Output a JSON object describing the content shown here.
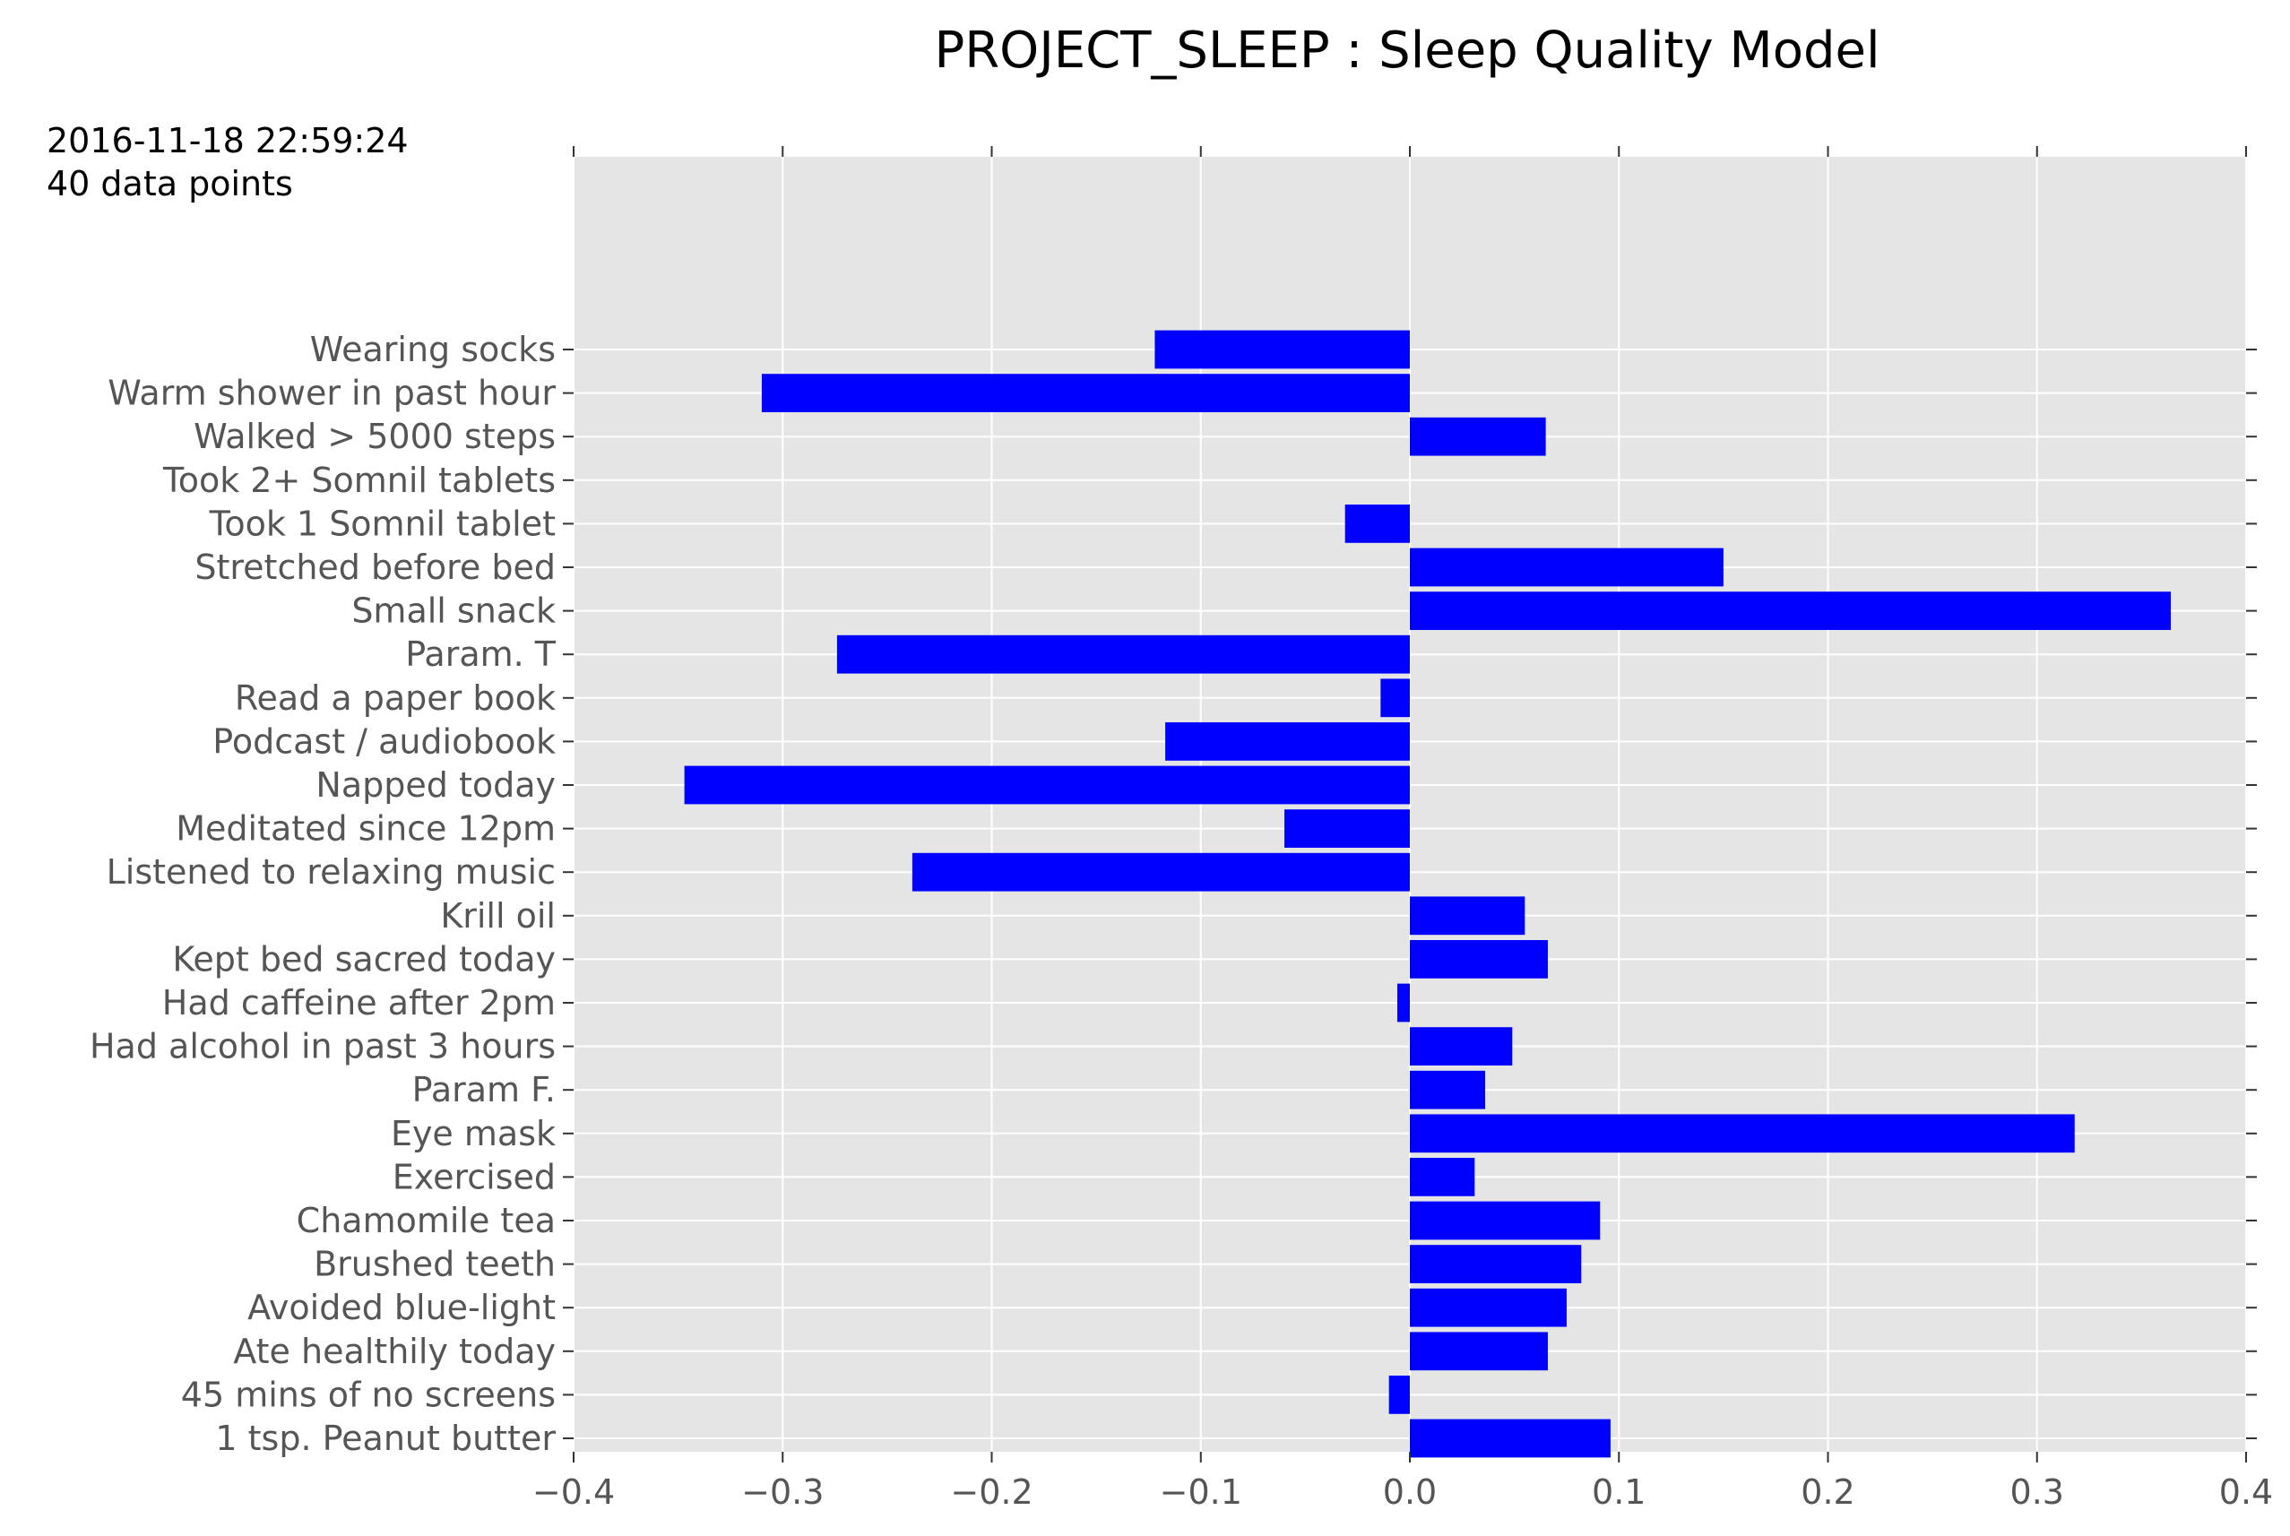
{
  "meta": {
    "timestamp": "2016-11-18 22:59:24",
    "count_text": "40 data points"
  },
  "chart_data": {
    "type": "bar",
    "orientation": "horizontal",
    "title": "PROJECT_SLEEP : Sleep Quality Model",
    "xlabel": "",
    "ylabel": "",
    "xlim": [
      -0.4,
      0.4
    ],
    "xticks": [
      -0.4,
      -0.3,
      -0.2,
      -0.1,
      0.0,
      0.1,
      0.2,
      0.3,
      0.4
    ],
    "xtick_labels": [
      "−0.4",
      "−0.3",
      "−0.2",
      "−0.1",
      "0.0",
      "0.1",
      "0.2",
      "0.3",
      "0.4"
    ],
    "grid": true,
    "bar_color": "#0000ff",
    "background_color": "#e5e5e5",
    "categories": [
      "Wearing socks",
      "Warm shower in past hour",
      "Walked > 5000 steps",
      "Took 2+ Somnil tablets",
      "Took 1 Somnil tablet",
      "Stretched before bed",
      "Small snack",
      "Param. T",
      "Read a paper book",
      "Podcast / audiobook",
      "Napped today",
      "Meditated since 12pm",
      "Listened to relaxing music",
      "Krill oil",
      "Kept bed sacred today",
      "Had caffeine after 2pm",
      "Had alcohol in past 3 hours",
      "Param F.",
      "Eye mask",
      "Exercised",
      "Chamomile tea",
      "Brushed teeth",
      "Avoided blue-light",
      "Ate healthily today",
      "45 mins of no screens",
      "1 tsp. Peanut butter"
    ],
    "values": [
      -0.122,
      -0.31,
      0.065,
      0.0,
      -0.031,
      0.15,
      0.364,
      -0.274,
      -0.014,
      -0.117,
      -0.347,
      -0.06,
      -0.238,
      0.055,
      0.066,
      -0.006,
      0.049,
      0.036,
      0.318,
      0.031,
      0.091,
      0.082,
      0.075,
      0.066,
      -0.01,
      0.096
    ]
  }
}
